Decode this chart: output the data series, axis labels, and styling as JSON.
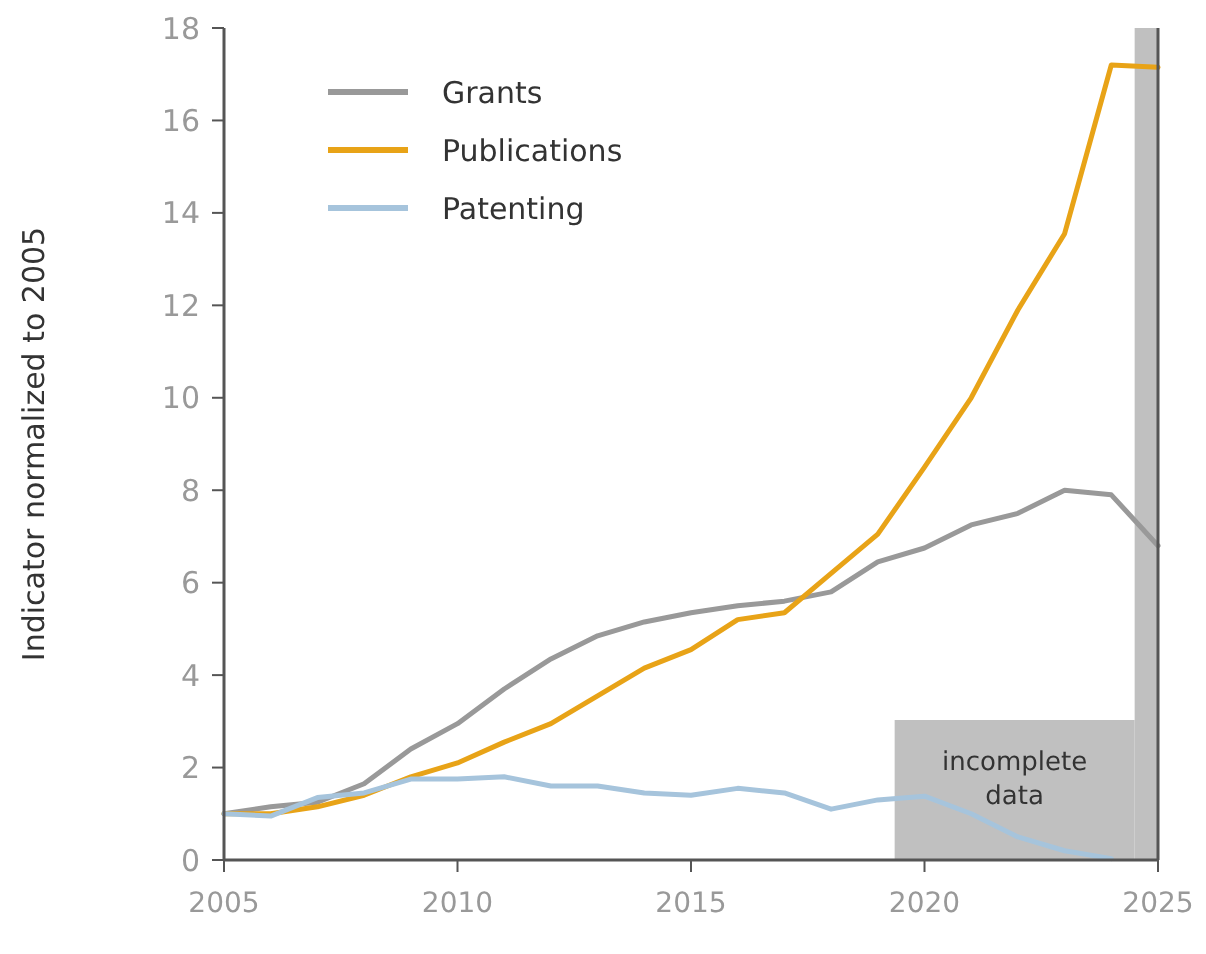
{
  "chart_data": {
    "type": "line",
    "ylabel": "Indicator normalized to 2005",
    "x": [
      2005,
      2006,
      2007,
      2008,
      2009,
      2010,
      2011,
      2012,
      2013,
      2014,
      2015,
      2016,
      2017,
      2018,
      2019,
      2020,
      2021,
      2022,
      2023,
      2024,
      2025
    ],
    "series": [
      {
        "name": "Grants",
        "color": "#999999",
        "values": [
          1.0,
          1.15,
          1.25,
          1.65,
          2.4,
          2.95,
          3.7,
          4.35,
          4.85,
          5.15,
          5.35,
          5.5,
          5.6,
          5.8,
          6.45,
          6.75,
          7.25,
          7.5,
          8.0,
          7.9,
          6.8
        ]
      },
      {
        "name": "Publications",
        "color": "#e8a317",
        "values": [
          1.0,
          1.0,
          1.15,
          1.4,
          1.8,
          2.1,
          2.55,
          2.95,
          3.55,
          4.15,
          4.55,
          5.2,
          5.35,
          6.2,
          7.05,
          8.5,
          10.0,
          11.9,
          13.55,
          17.2,
          17.15
        ]
      },
      {
        "name": "Patenting",
        "color": "#a6c4dc",
        "values": [
          1.0,
          0.95,
          1.35,
          1.45,
          1.75,
          1.75,
          1.8,
          1.6,
          1.6,
          1.45,
          1.4,
          1.55,
          1.45,
          1.1,
          1.3,
          1.38,
          1.0,
          0.5,
          0.2,
          0.03,
          null
        ]
      }
    ],
    "xlim": [
      2005,
      2025
    ],
    "xticks": [
      2005,
      2010,
      2015,
      2020,
      2025
    ],
    "ylim": [
      0,
      18
    ],
    "yticks": [
      0,
      2,
      4,
      6,
      8,
      10,
      12,
      14,
      16,
      18
    ],
    "bands": [
      {
        "axis": "x",
        "from": 2024.5,
        "to": 2025,
        "color": "#c0c0c0"
      }
    ],
    "annotations": [
      "incomplete data"
    ],
    "legend": "top left",
    "grid": false,
    "marker": "none",
    "line_style": "solid"
  }
}
